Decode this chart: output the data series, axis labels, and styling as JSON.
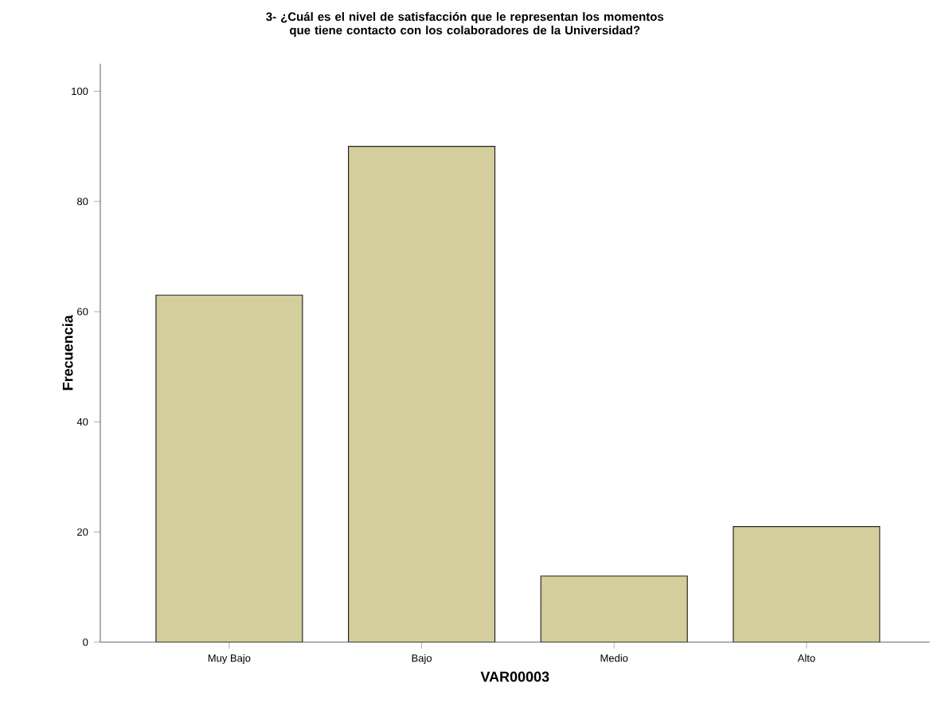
{
  "chart_data": {
    "type": "bar",
    "title": "3- ¿Cuál es el nivel de satisfacción que le representan los momentos que tiene contacto con los colaboradores de la Universidad?",
    "xlabel": "VAR00003",
    "ylabel": "Frecuencia",
    "categories": [
      "Muy Bajo",
      "Bajo",
      "Medio",
      "Alto"
    ],
    "values": [
      63,
      90,
      12,
      21
    ],
    "color": "#d3ce9b",
    "ylim": [
      0,
      105
    ],
    "yticks": [
      0,
      20,
      40,
      60,
      80,
      100
    ],
    "grid": false
  }
}
